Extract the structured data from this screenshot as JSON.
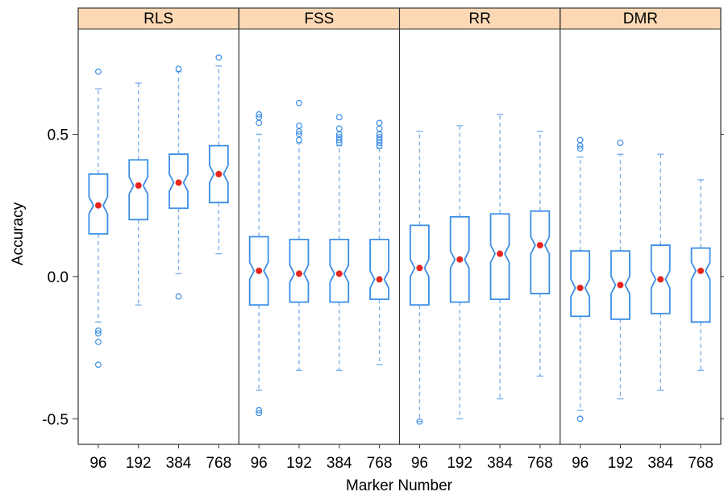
{
  "chart_data": {
    "type": "box",
    "panels": [
      "RLS",
      "FSS",
      "RR",
      "DMR"
    ],
    "categories": [
      "96",
      "192",
      "384",
      "768"
    ],
    "xlabel": "Marker Number",
    "ylabel": "Accuracy",
    "ylim": [
      -0.59,
      0.87
    ],
    "yticks": [
      "-0.5",
      "0.0",
      "0.5"
    ],
    "ytick_values": [
      -0.5,
      0.0,
      0.5
    ],
    "series": [
      {
        "name": "RLS",
        "boxes": [
          {
            "category": "96",
            "whisker_low": -0.16,
            "q1": 0.15,
            "median": 0.25,
            "q3": 0.36,
            "whisker_high": 0.66,
            "mean": 0.25,
            "notch_low": 0.22,
            "notch_high": 0.28,
            "outliers": [
              0.72,
              -0.19,
              -0.2,
              -0.23,
              -0.31
            ]
          },
          {
            "category": "192",
            "whisker_low": -0.1,
            "q1": 0.2,
            "median": 0.32,
            "q3": 0.41,
            "whisker_high": 0.68,
            "mean": 0.32,
            "notch_low": 0.29,
            "notch_high": 0.35,
            "outliers": []
          },
          {
            "category": "384",
            "whisker_low": 0.01,
            "q1": 0.24,
            "median": 0.33,
            "q3": 0.43,
            "whisker_high": 0.72,
            "mean": 0.33,
            "notch_low": 0.3,
            "notch_high": 0.36,
            "outliers": [
              0.73,
              -0.07
            ]
          },
          {
            "category": "768",
            "whisker_low": 0.08,
            "q1": 0.26,
            "median": 0.36,
            "q3": 0.46,
            "whisker_high": 0.74,
            "mean": 0.36,
            "notch_low": 0.33,
            "notch_high": 0.39,
            "outliers": [
              0.77
            ]
          }
        ]
      },
      {
        "name": "FSS",
        "boxes": [
          {
            "category": "96",
            "whisker_low": -0.4,
            "q1": -0.1,
            "median": 0.02,
            "q3": 0.14,
            "whisker_high": 0.5,
            "mean": 0.02,
            "notch_low": -0.01,
            "notch_high": 0.05,
            "outliers": [
              0.57,
              0.56,
              0.54,
              -0.47,
              -0.48
            ]
          },
          {
            "category": "192",
            "whisker_low": -0.33,
            "q1": -0.09,
            "median": 0.01,
            "q3": 0.13,
            "whisker_high": 0.47,
            "mean": 0.01,
            "notch_low": -0.02,
            "notch_high": 0.04,
            "outliers": [
              0.61,
              0.53,
              0.51,
              0.5,
              0.48
            ]
          },
          {
            "category": "384",
            "whisker_low": -0.33,
            "q1": -0.09,
            "median": 0.01,
            "q3": 0.13,
            "whisker_high": 0.46,
            "mean": 0.01,
            "notch_low": -0.02,
            "notch_high": 0.04,
            "outliers": [
              0.56,
              0.52,
              0.5,
              0.49,
              0.48,
              0.47
            ]
          },
          {
            "category": "768",
            "whisker_low": -0.31,
            "q1": -0.08,
            "median": -0.01,
            "q3": 0.13,
            "whisker_high": 0.45,
            "mean": -0.01,
            "notch_low": -0.04,
            "notch_high": 0.02,
            "outliers": [
              0.54,
              0.52,
              0.5,
              0.49,
              0.48,
              0.47,
              0.46
            ]
          }
        ]
      },
      {
        "name": "RR",
        "boxes": [
          {
            "category": "96",
            "whisker_low": -0.51,
            "q1": -0.1,
            "median": 0.03,
            "q3": 0.18,
            "whisker_high": 0.51,
            "mean": 0.03,
            "notch_low": 0.0,
            "notch_high": 0.06,
            "outliers": [
              -0.51
            ]
          },
          {
            "category": "192",
            "whisker_low": -0.5,
            "q1": -0.09,
            "median": 0.06,
            "q3": 0.21,
            "whisker_high": 0.53,
            "mean": 0.06,
            "notch_low": 0.03,
            "notch_high": 0.09,
            "outliers": []
          },
          {
            "category": "384",
            "whisker_low": -0.43,
            "q1": -0.08,
            "median": 0.08,
            "q3": 0.22,
            "whisker_high": 0.57,
            "mean": 0.08,
            "notch_low": 0.05,
            "notch_high": 0.11,
            "outliers": []
          },
          {
            "category": "768",
            "whisker_low": -0.35,
            "q1": -0.06,
            "median": 0.11,
            "q3": 0.23,
            "whisker_high": 0.51,
            "mean": 0.11,
            "notch_low": 0.08,
            "notch_high": 0.14,
            "outliers": []
          }
        ]
      },
      {
        "name": "DMR",
        "boxes": [
          {
            "category": "96",
            "whisker_low": -0.47,
            "q1": -0.14,
            "median": -0.04,
            "q3": 0.09,
            "whisker_high": 0.42,
            "mean": -0.04,
            "notch_low": -0.07,
            "notch_high": -0.01,
            "outliers": [
              0.48,
              0.46,
              0.45,
              -0.5
            ]
          },
          {
            "category": "192",
            "whisker_low": -0.43,
            "q1": -0.15,
            "median": -0.03,
            "q3": 0.09,
            "whisker_high": 0.43,
            "mean": -0.03,
            "notch_low": -0.06,
            "notch_high": 0.0,
            "outliers": [
              0.47
            ]
          },
          {
            "category": "384",
            "whisker_low": -0.4,
            "q1": -0.13,
            "median": -0.01,
            "q3": 0.11,
            "whisker_high": 0.43,
            "mean": -0.01,
            "notch_low": -0.04,
            "notch_high": 0.02,
            "outliers": []
          },
          {
            "category": "768",
            "whisker_low": -0.33,
            "q1": -0.16,
            "median": 0.02,
            "q3": 0.1,
            "whisker_high": 0.34,
            "mean": 0.02,
            "notch_low": -0.01,
            "notch_high": 0.05,
            "outliers": []
          }
        ]
      }
    ],
    "colors": {
      "box": "#3a8ee6",
      "whisker": "#7fb2ea",
      "mean": "#e8261e",
      "strip": "#fcd9b4",
      "frame": "#333333"
    },
    "grid": false,
    "legend": "none"
  }
}
